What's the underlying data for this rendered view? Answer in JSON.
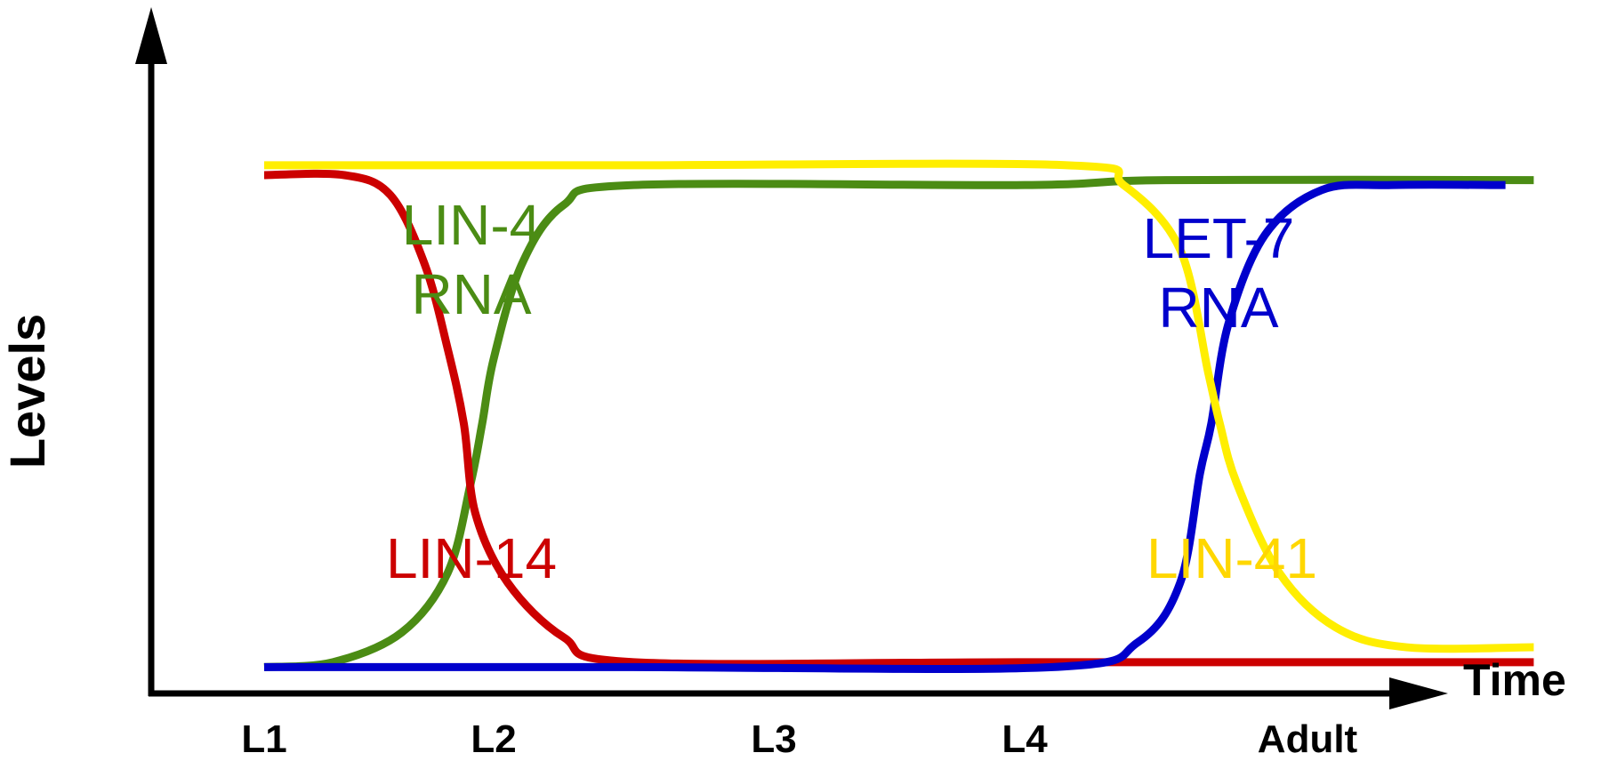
{
  "chart_data": {
    "type": "line",
    "title": "",
    "xlabel": "Time",
    "ylabel": "Levels",
    "categories": [
      "L1",
      "L2",
      "L3",
      "L4",
      "Adult"
    ],
    "grid": false,
    "legend": "inline labels",
    "series": [
      {
        "name": "LIN-4 RNA",
        "label_lines": [
          "LIN-4",
          "RNA"
        ],
        "color": "#4b8c14",
        "points": [
          [
            0.0,
            0.01
          ],
          [
            0.3,
            0.02
          ],
          [
            0.6,
            0.08
          ],
          [
            0.8,
            0.2
          ],
          [
            0.9,
            0.38
          ],
          [
            0.95,
            0.5
          ],
          [
            1.0,
            0.63
          ],
          [
            1.1,
            0.82
          ],
          [
            1.25,
            0.94
          ],
          [
            1.5,
            0.98
          ],
          [
            3.0,
            0.98
          ],
          [
            3.5,
            0.99
          ],
          [
            4.8,
            0.99
          ]
        ]
      },
      {
        "name": "LIN-14",
        "label_lines": [
          "LIN-14"
        ],
        "color": "#cc0000",
        "points": [
          [
            0.0,
            1.0
          ],
          [
            0.35,
            1.0
          ],
          [
            0.55,
            0.96
          ],
          [
            0.7,
            0.82
          ],
          [
            0.8,
            0.65
          ],
          [
            0.87,
            0.5
          ],
          [
            0.92,
            0.32
          ],
          [
            1.05,
            0.18
          ],
          [
            1.25,
            0.07
          ],
          [
            1.5,
            0.02
          ],
          [
            3.0,
            0.02
          ],
          [
            4.8,
            0.02
          ]
        ]
      },
      {
        "name": "LET-7 RNA",
        "label_lines": [
          "LET-7",
          "RNA"
        ],
        "color": "#0000cc",
        "points": [
          [
            0.0,
            0.01
          ],
          [
            1.5,
            0.01
          ],
          [
            3.1,
            0.01
          ],
          [
            3.4,
            0.06
          ],
          [
            3.55,
            0.18
          ],
          [
            3.62,
            0.4
          ],
          [
            3.66,
            0.5
          ],
          [
            3.72,
            0.7
          ],
          [
            3.85,
            0.88
          ],
          [
            4.05,
            0.97
          ],
          [
            4.3,
            0.98
          ],
          [
            4.7,
            0.98
          ]
        ]
      },
      {
        "name": "LIN-41",
        "label_lines": [
          "LIN-41"
        ],
        "color": "#ffee00",
        "label_color": "#ffd700",
        "points": [
          [
            0.0,
            1.02
          ],
          [
            1.5,
            1.02
          ],
          [
            3.15,
            1.02
          ],
          [
            3.35,
            0.98
          ],
          [
            3.55,
            0.85
          ],
          [
            3.65,
            0.6
          ],
          [
            3.69,
            0.5
          ],
          [
            3.75,
            0.38
          ],
          [
            3.9,
            0.2
          ],
          [
            4.1,
            0.09
          ],
          [
            4.35,
            0.05
          ],
          [
            4.8,
            0.05
          ]
        ]
      }
    ]
  }
}
